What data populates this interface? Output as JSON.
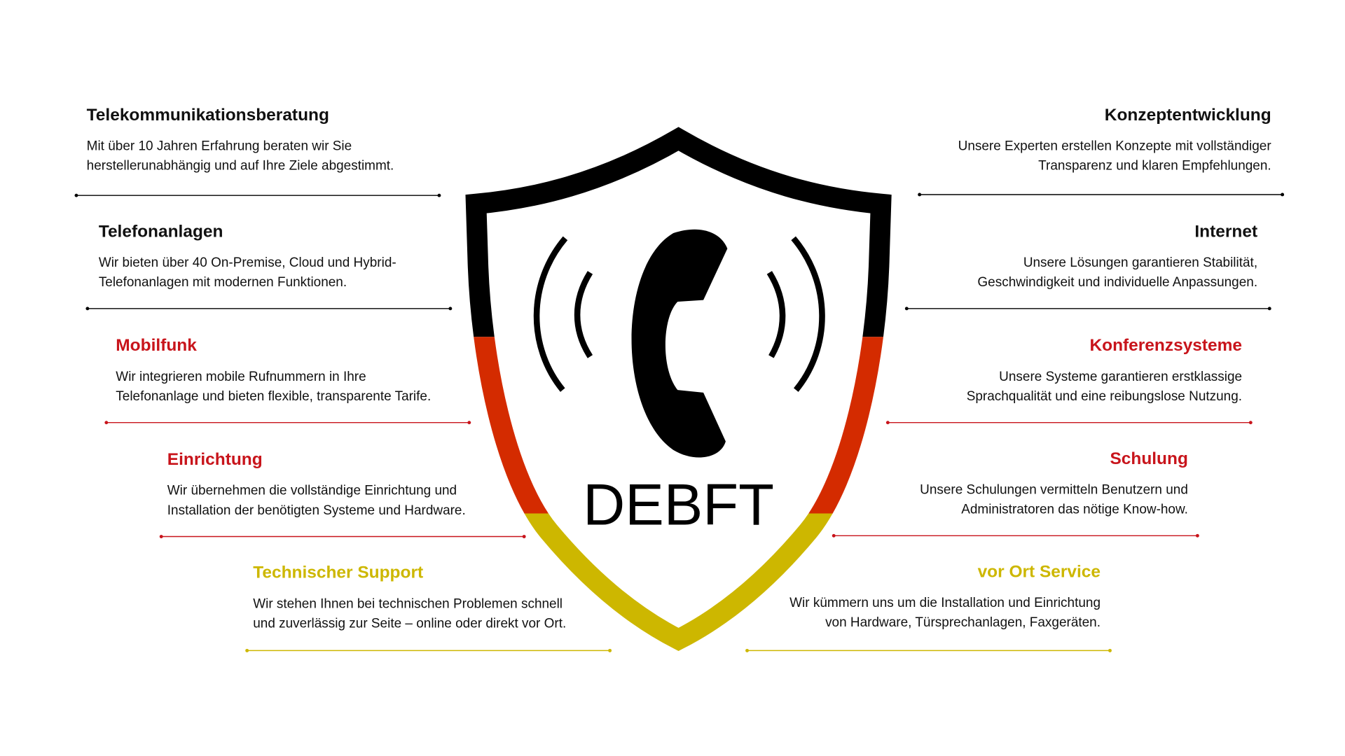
{
  "logo": {
    "name": "DEBFT"
  },
  "left": [
    {
      "title": "Telekommunikationsberatung",
      "lines": [
        "Mit über 10 Jahren Erfahrung beraten wir Sie",
        "herstellerunabhängig und auf Ihre Ziele abgestimmt."
      ]
    },
    {
      "title": "Telefonanlagen",
      "lines": [
        "Wir bieten über 40 On-Premise, Cloud und Hybrid-",
        "Telefonanlagen mit modernen Funktionen."
      ]
    },
    {
      "title": "Mobilfunk",
      "lines": [
        "Wir integrieren mobile Rufnummern in Ihre",
        "Telefonanlage und bieten flexible, transparente Tarife."
      ]
    },
    {
      "title": "Einrichtung",
      "lines": [
        "Wir übernehmen die vollständige Einrichtung und",
        "Installation der benötigten Systeme und Hardware."
      ]
    },
    {
      "title": "Technischer Support",
      "lines": [
        "Wir stehen Ihnen bei technischen Problemen schnell",
        "und zuverlässig zur Seite – online oder direkt vor Ort."
      ]
    }
  ],
  "right": [
    {
      "title": "Konzeptentwicklung",
      "lines": [
        "Unsere Experten erstellen Konzepte mit vollständiger",
        "Transparenz und klaren Empfehlungen."
      ]
    },
    {
      "title": "Internet",
      "lines": [
        "Unsere Lösungen garantieren Stabilität,",
        "Geschwindigkeit und individuelle Anpassungen."
      ]
    },
    {
      "title": "Konferenzsysteme",
      "lines": [
        "Unsere Systeme garantieren erstklassige",
        "Sprachqualität und eine reibungslose Nutzung."
      ]
    },
    {
      "title": "Schulung",
      "lines": [
        "Unsere Schulungen vermitteln Benutzern und",
        "Administratoren das nötige Know-how."
      ]
    },
    {
      "title": "vor Ort Service",
      "lines": [
        "Wir kümmern uns um die Installation und Einrichtung",
        "von Hardware, Türsprechanlagen, Faxgeräten."
      ]
    }
  ]
}
